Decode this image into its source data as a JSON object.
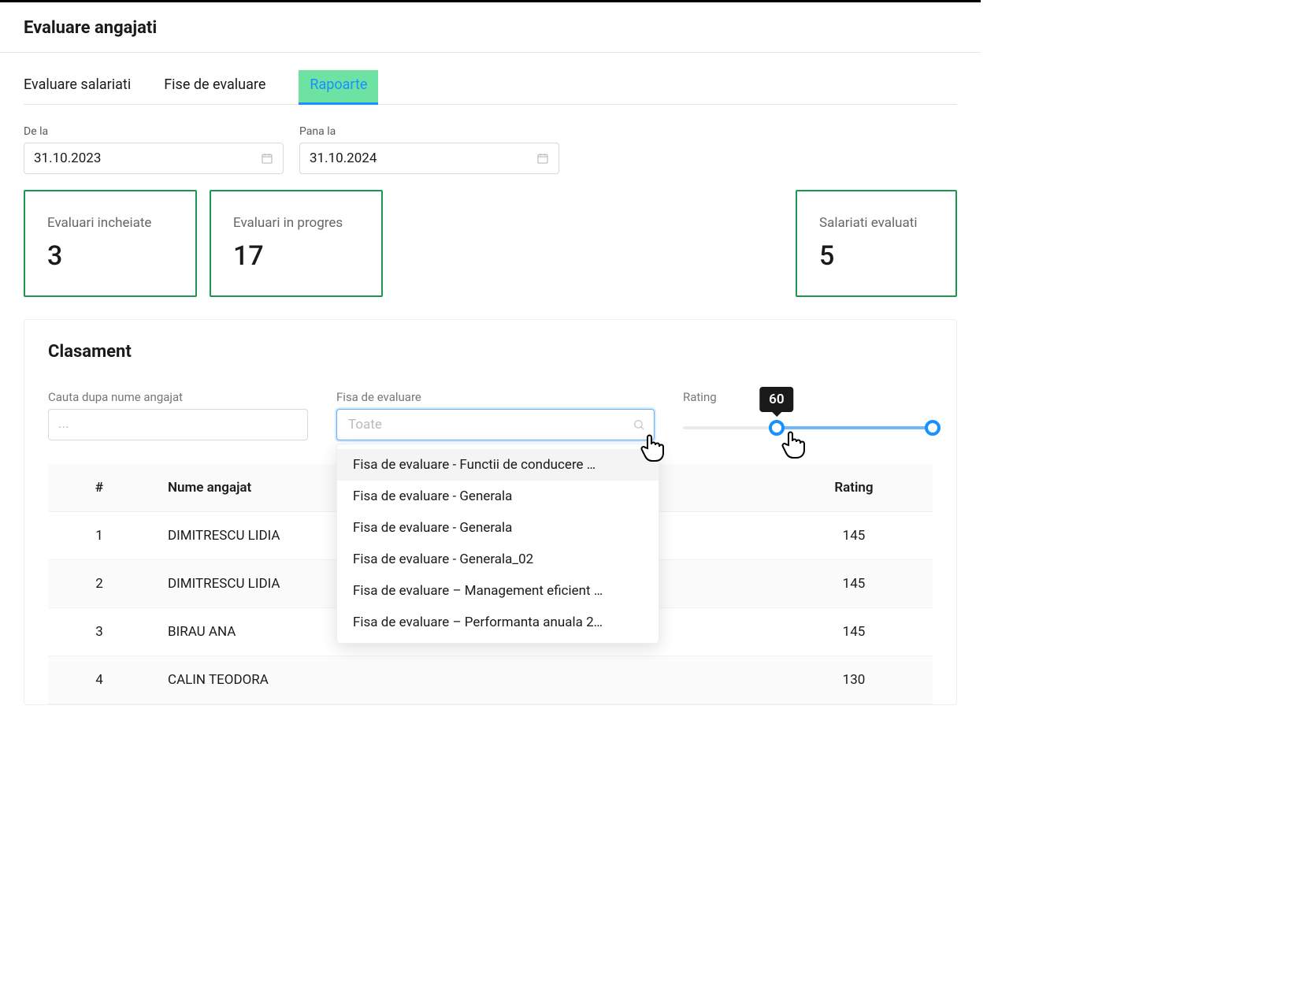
{
  "header": {
    "title": "Evaluare angajati"
  },
  "tabs": {
    "items": [
      {
        "label": "Evaluare salariati",
        "active": false
      },
      {
        "label": "Fise de evaluare",
        "active": false
      },
      {
        "label": "Rapoarte",
        "active": true
      }
    ]
  },
  "dateRange": {
    "from": {
      "label": "De la",
      "value": "31.10.2023"
    },
    "to": {
      "label": "Pana la",
      "value": "31.10.2024"
    }
  },
  "stats": {
    "completed": {
      "label": "Evaluari incheiate",
      "value": "3"
    },
    "inProgress": {
      "label": "Evaluari in progres",
      "value": "17"
    },
    "evaluated": {
      "label": "Salariati evaluati",
      "value": "5"
    },
    "accentColor": "#1a9850"
  },
  "ranking": {
    "title": "Clasament",
    "filters": {
      "search": {
        "label": "Cauta dupa nume angajat",
        "placeholder": "..."
      },
      "sheet": {
        "label": "Fisa de evaluare",
        "placeholder": "Toate",
        "options": [
          "Fisa de evaluare - Functii de conducere …",
          "Fisa de evaluare - Generala",
          "Fisa de evaluare - Generala",
          "Fisa de evaluare - Generala_02",
          "Fisa de evaluare – Management eficient …",
          "Fisa de evaluare – Performanta anuala 2…"
        ]
      },
      "rating": {
        "label": "Rating",
        "min": 0,
        "max": 160,
        "low": 60,
        "high": 160,
        "tooltip": "60",
        "trackColor": "#eaeaea",
        "fillColor": "#72b7f9",
        "handleBorder": "#1890ff"
      }
    },
    "columns": {
      "index": "#",
      "name": "Nume angajat",
      "rating": "Rating"
    },
    "rows": [
      {
        "idx": "1",
        "name": "DIMITRESCU LIDIA",
        "rating": "145"
      },
      {
        "idx": "2",
        "name": "DIMITRESCU LIDIA",
        "rating": "145"
      },
      {
        "idx": "3",
        "name": "BIRAU ANA",
        "rating": "145"
      },
      {
        "idx": "4",
        "name": "CALIN TEODORA",
        "rating": "130"
      }
    ]
  }
}
